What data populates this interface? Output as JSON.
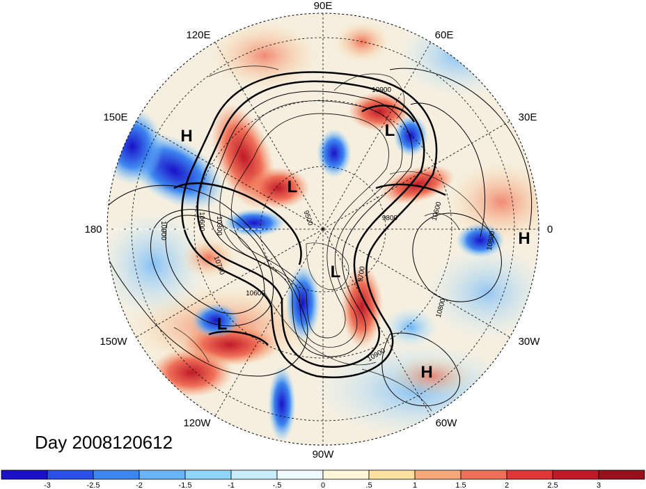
{
  "longitude_labels": [
    "90E",
    "60E",
    "30E",
    "0",
    "30W",
    "60W",
    "90W",
    "120W",
    "150W",
    "180",
    "150E",
    "120E"
  ],
  "pressure_centers": [
    "H",
    "L",
    "L",
    "L",
    "H",
    "H",
    "L"
  ],
  "contour_labels": [
    "10900",
    "10900",
    "10600",
    "10600",
    "10300",
    "10700",
    "9500",
    "9800",
    "10600",
    "9700",
    "10800",
    "10900",
    "10800"
  ],
  "day_label": "Day 2008120612",
  "colorbar": {
    "ticks": [
      "-3",
      "-2.5",
      "-2",
      "-1.5",
      "-1",
      "-.5",
      "0",
      ".5",
      "1",
      "1.5",
      "2",
      "2.5",
      "3"
    ],
    "colors": [
      "#1a10c8",
      "#2a50e8",
      "#3d86f0",
      "#6ab4f8",
      "#8fd6fa",
      "#c8eefc",
      "#eefafe",
      "#fff5d8",
      "#fce0a0",
      "#f5a878",
      "#ef7058",
      "#e03838",
      "#c01a28",
      "#98101c"
    ]
  }
}
